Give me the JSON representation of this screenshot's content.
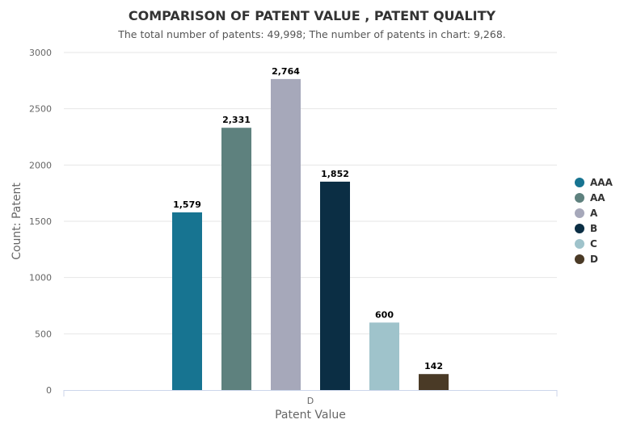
{
  "chart_data": {
    "type": "bar",
    "title": "COMPARISON OF PATENT VALUE , PATENT QUALITY",
    "subtitle": "The total number of patents: 49,998; The number of patents in chart: 9,268.",
    "xlabel": "Patent Value",
    "ylabel": "Count: Patent",
    "categories": [
      "D"
    ],
    "ylim": [
      0,
      3000
    ],
    "yticks": [
      0,
      500,
      1000,
      1500,
      2000,
      2500,
      3000
    ],
    "grid": true,
    "legend_position": "right",
    "series": [
      {
        "name": "AAA",
        "values": [
          1579
        ],
        "label": "1,579",
        "color": "#177491"
      },
      {
        "name": "AA",
        "values": [
          2331
        ],
        "label": "2,331",
        "color": "#5e817e"
      },
      {
        "name": "A",
        "values": [
          2764
        ],
        "label": "2,764",
        "color": "#a6a8ba"
      },
      {
        "name": "B",
        "values": [
          1852
        ],
        "label": "1,852",
        "color": "#0b2e44"
      },
      {
        "name": "C",
        "values": [
          600
        ],
        "label": "600",
        "color": "#9fc3cb"
      },
      {
        "name": "D",
        "values": [
          142
        ],
        "label": "142",
        "color": "#4a3a26"
      }
    ]
  }
}
